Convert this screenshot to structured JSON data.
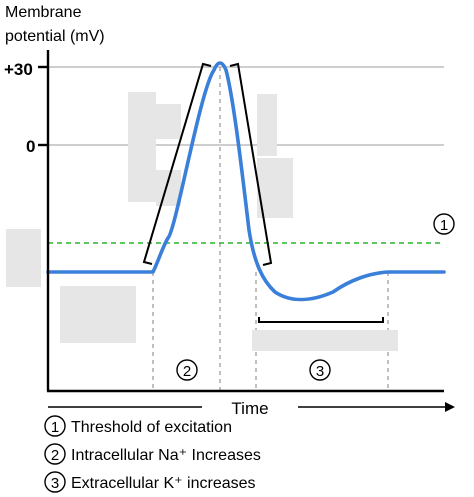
{
  "y_axis": {
    "title_line1": "Membrane",
    "title_line2": "potential (mV)",
    "ticks": [
      "+30",
      "0"
    ]
  },
  "x_axis": {
    "label": "Time"
  },
  "markers": {
    "threshold": "1",
    "depolarization": "2",
    "repolarization": "3"
  },
  "legend": [
    {
      "num": "1",
      "text": "Threshold of excitation"
    },
    {
      "num": "2",
      "text": "Intracellular Na⁺ Increases"
    },
    {
      "num": "3",
      "text": "Extracellular K⁺ increases"
    }
  ],
  "colors": {
    "potential_curve": "#3a7fd9",
    "threshold_line": "#2bb42b",
    "axis": "#000000",
    "gridline": "#bdbdbd",
    "label_masks": "#e6e6e6"
  }
}
